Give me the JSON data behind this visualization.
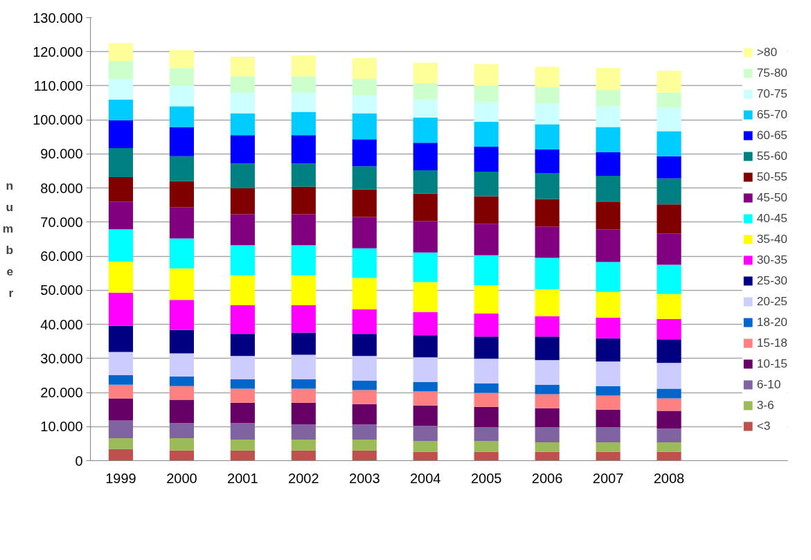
{
  "chart_data": {
    "type": "bar",
    "stacked": true,
    "ylabel": "number",
    "categories": [
      "1999",
      "2000",
      "2001",
      "2002",
      "2003",
      "2004",
      "2005",
      "2006",
      "2007",
      "2008"
    ],
    "ylim": [
      0,
      130000
    ],
    "yticks": [
      0,
      {
        "value": 10000,
        "label": "10.000"
      },
      {
        "value": 20000,
        "label": "20.000"
      },
      {
        "value": 30000,
        "label": "30.000"
      },
      {
        "value": 40000,
        "label": "40.000"
      },
      {
        "value": 50000,
        "label": "50.000"
      },
      {
        "value": 60000,
        "label": "60.000"
      },
      {
        "value": 70000,
        "label": "70.000"
      },
      {
        "value": 80000,
        "label": "80.000"
      },
      {
        "value": 90000,
        "label": "90.000"
      },
      {
        "value": 100000,
        "label": "100.000"
      },
      {
        "value": 110000,
        "label": "110.000"
      },
      {
        "value": 120000,
        "label": "120.000"
      },
      {
        "value": 130000,
        "label": "130.000"
      }
    ],
    "grid": "y",
    "legend": "right",
    "series": [
      {
        "name": "<3",
        "color": "#c0504d",
        "values": [
          3400,
          3000,
          3000,
          3000,
          3000,
          2600,
          2600,
          2600,
          2600,
          2600
        ]
      },
      {
        "name": "3-6",
        "color": "#9bbb59",
        "values": [
          3200,
          3600,
          3200,
          3200,
          3200,
          3200,
          3200,
          2800,
          2800,
          2800
        ]
      },
      {
        "name": "6-10",
        "color": "#8064a2",
        "values": [
          5200,
          4400,
          4800,
          4400,
          4400,
          4400,
          4000,
          4400,
          4400,
          4000
        ]
      },
      {
        "name": "10-15",
        "color": "#660066",
        "values": [
          6500,
          6900,
          6000,
          6400,
          6000,
          6000,
          6000,
          5600,
          5200,
          5200
        ]
      },
      {
        "name": "15-18",
        "color": "#ff8080",
        "values": [
          4000,
          4000,
          4100,
          4100,
          4100,
          4100,
          4100,
          4100,
          4100,
          3700
        ]
      },
      {
        "name": "18-20",
        "color": "#0066cc",
        "values": [
          2800,
          2800,
          2800,
          2800,
          2800,
          2800,
          2800,
          2800,
          2800,
          2800
        ]
      },
      {
        "name": "20-25",
        "color": "#ccccff",
        "values": [
          6800,
          6800,
          6800,
          7200,
          7200,
          7200,
          7200,
          7200,
          7200,
          7600
        ]
      },
      {
        "name": "25-30",
        "color": "#000080",
        "values": [
          7700,
          6900,
          6500,
          6500,
          6500,
          6500,
          6500,
          6900,
          6800,
          6900
        ]
      },
      {
        "name": "30-35",
        "color": "#ff00ff",
        "values": [
          9700,
          8800,
          8400,
          8000,
          7200,
          6800,
          6800,
          6000,
          6100,
          6000
        ]
      },
      {
        "name": "35-40",
        "color": "#ffff00",
        "values": [
          9100,
          9200,
          8800,
          8800,
          9200,
          8800,
          8300,
          7900,
          7500,
          7300
        ]
      },
      {
        "name": "40-45",
        "color": "#00ffff",
        "values": [
          9500,
          8800,
          8800,
          8800,
          8700,
          8700,
          8800,
          9200,
          8800,
          8600
        ]
      },
      {
        "name": "45-50",
        "color": "#800080",
        "values": [
          8100,
          9200,
          9100,
          9100,
          9200,
          9200,
          9200,
          9200,
          9600,
          9200
        ]
      },
      {
        "name": "50-55",
        "color": "#800000",
        "values": [
          7200,
          7600,
          7700,
          8100,
          8100,
          8100,
          8100,
          8100,
          8100,
          8500
        ]
      },
      {
        "name": "55-60",
        "color": "#008080",
        "values": [
          8500,
          7300,
          7200,
          6800,
          6800,
          6800,
          7200,
          7600,
          7600,
          7600
        ]
      },
      {
        "name": "60-65",
        "color": "#0000ff",
        "values": [
          8200,
          8600,
          8300,
          8300,
          7900,
          8100,
          7300,
          6900,
          6900,
          6500
        ]
      },
      {
        "name": "65-70",
        "color": "#00ccff",
        "values": [
          6100,
          6100,
          6400,
          6800,
          7600,
          7400,
          7400,
          7400,
          7400,
          7400
        ]
      },
      {
        "name": "70-75",
        "color": "#ccffff",
        "values": [
          6000,
          6000,
          6100,
          5700,
          5300,
          5300,
          5700,
          6100,
          6100,
          6900
        ]
      },
      {
        "name": "75-80",
        "color": "#ccffcc",
        "values": [
          5300,
          5200,
          4800,
          4800,
          4800,
          4800,
          4800,
          4800,
          4800,
          4400
        ]
      },
      {
        "name": ">80",
        "color": "#ffff99",
        "values": [
          5200,
          5300,
          5700,
          6100,
          6100,
          6000,
          6400,
          6000,
          6400,
          6400
        ]
      }
    ]
  }
}
